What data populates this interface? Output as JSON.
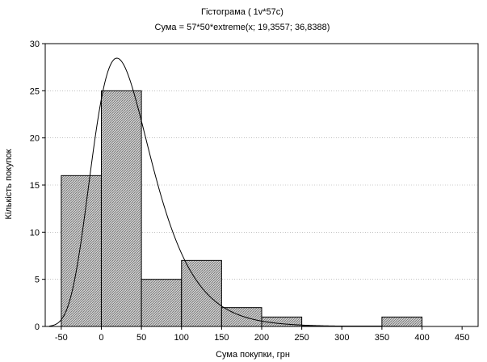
{
  "chart_data": {
    "type": "bar",
    "title": "Гістограма ( 1v*57c)",
    "subtitle": "Сума = 57*50*extreme(x; 19,3557; 36,8388)",
    "xlabel": "Сума покупки, грн",
    "ylabel": "Кількість покупок",
    "xlim": [
      -70,
      470
    ],
    "ylim": [
      0,
      30
    ],
    "x_ticks": [
      "-50",
      "0",
      "50",
      "100",
      "150",
      "200",
      "250",
      "300",
      "350",
      "400",
      "450"
    ],
    "y_ticks": [
      "0",
      "5",
      "10",
      "15",
      "20",
      "25",
      "30"
    ],
    "grid": true,
    "bins": [
      {
        "range": [
          -50,
          0
        ],
        "count": 16
      },
      {
        "range": [
          0,
          50
        ],
        "count": 25
      },
      {
        "range": [
          50,
          100
        ],
        "count": 5
      },
      {
        "range": [
          100,
          150
        ],
        "count": 7
      },
      {
        "range": [
          150,
          200
        ],
        "count": 2
      },
      {
        "range": [
          200,
          250
        ],
        "count": 1
      },
      {
        "range": [
          250,
          300
        ],
        "count": 0
      },
      {
        "range": [
          300,
          350
        ],
        "count": 0
      },
      {
        "range": [
          350,
          400
        ],
        "count": 1
      }
    ],
    "fit": {
      "distribution": "extreme",
      "location": 19.3557,
      "scale": 36.8388,
      "n": 57,
      "bin_width": 50
    }
  }
}
